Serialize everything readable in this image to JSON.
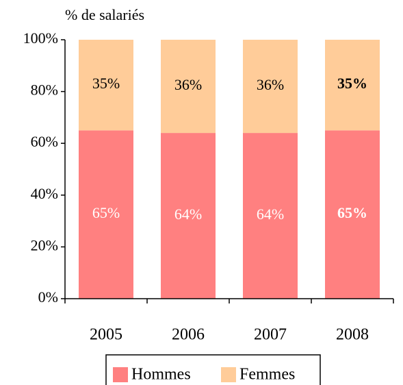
{
  "chart_data": {
    "type": "stacked_bar",
    "y_axis_label": "% de salariés",
    "categories": [
      "2005",
      "2006",
      "2007",
      "2008"
    ],
    "series": [
      {
        "name": "Hommes",
        "color": "#ff8080",
        "label_color": "#ffffff",
        "values": [
          65,
          64,
          64,
          65
        ],
        "value_labels": [
          "65%",
          "64%",
          "64%",
          "65%"
        ]
      },
      {
        "name": "Femmes",
        "color": "#ffcc99",
        "label_color": "#000000",
        "values": [
          35,
          36,
          36,
          35
        ],
        "value_labels": [
          "35%",
          "36%",
          "36%",
          "35%"
        ]
      }
    ],
    "value_labels_bold": [
      false,
      false,
      false,
      true
    ],
    "ylim": [
      0,
      100
    ],
    "yticks": [
      {
        "value": 0,
        "label": "0%"
      },
      {
        "value": 20,
        "label": "20%"
      },
      {
        "value": 40,
        "label": "40%"
      },
      {
        "value": 60,
        "label": "60%"
      },
      {
        "value": 80,
        "label": "80%"
      },
      {
        "value": 100,
        "label": "100%"
      }
    ],
    "legend": "bottom"
  }
}
